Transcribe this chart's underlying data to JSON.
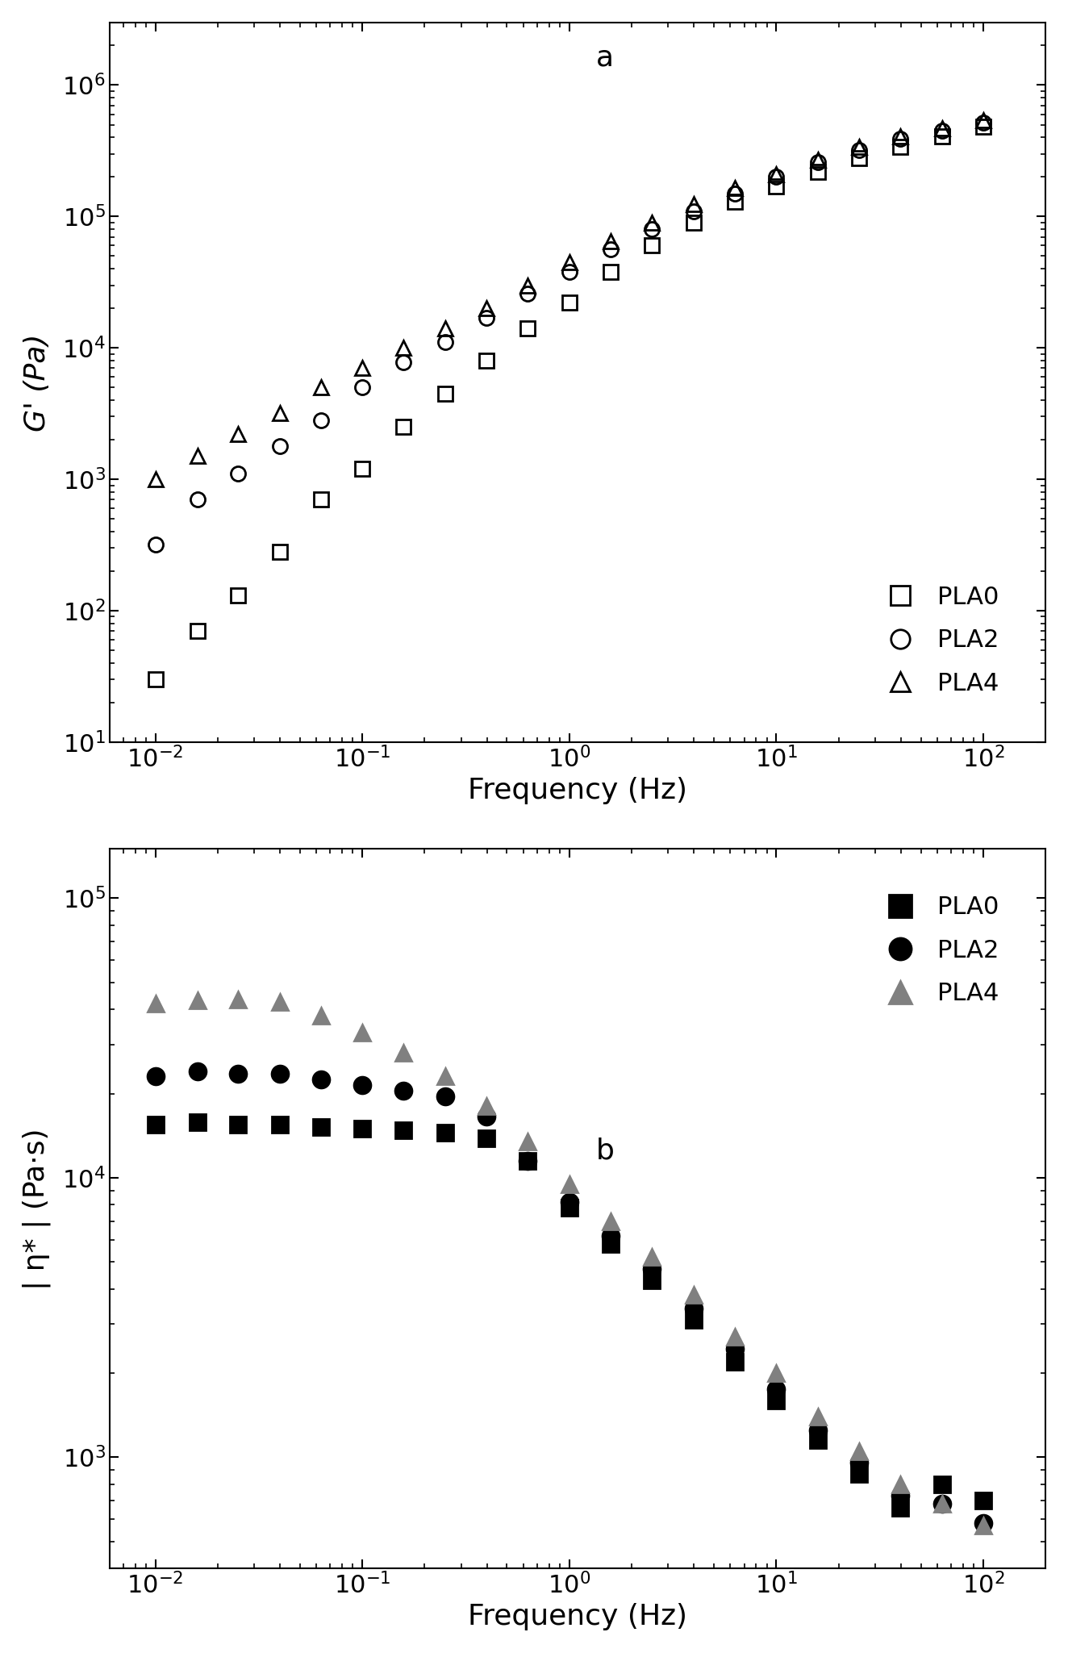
{
  "plot_a": {
    "label": "a",
    "ylabel": "G' (Pa)",
    "xlabel": "Frequency (Hz)",
    "xlim": [
      0.006,
      200
    ],
    "ylim": [
      10,
      3000000
    ],
    "PLA0": {
      "freq": [
        0.01,
        0.016,
        0.025,
        0.04,
        0.063,
        0.1,
        0.158,
        0.251,
        0.398,
        0.631,
        1.0,
        1.585,
        2.512,
        3.981,
        6.31,
        10.0,
        15.85,
        25.12,
        39.81,
        63.1,
        100.0
      ],
      "G": [
        30,
        70,
        130,
        280,
        700,
        1200,
        2500,
        4500,
        8000,
        14000,
        22000,
        38000,
        60000,
        90000,
        130000,
        170000,
        220000,
        280000,
        340000,
        410000,
        480000
      ]
    },
    "PLA2": {
      "freq": [
        0.01,
        0.016,
        0.025,
        0.04,
        0.063,
        0.1,
        0.158,
        0.251,
        0.398,
        0.631,
        1.0,
        1.585,
        2.512,
        3.981,
        6.31,
        10.0,
        15.85,
        25.12,
        39.81,
        63.1,
        100.0
      ],
      "G": [
        320,
        700,
        1100,
        1800,
        2800,
        5000,
        7800,
        11000,
        17000,
        26000,
        38000,
        56000,
        80000,
        110000,
        150000,
        200000,
        260000,
        320000,
        390000,
        450000,
        520000
      ]
    },
    "PLA4": {
      "freq": [
        0.01,
        0.016,
        0.025,
        0.04,
        0.063,
        0.1,
        0.158,
        0.251,
        0.398,
        0.631,
        1.0,
        1.585,
        2.512,
        3.981,
        6.31,
        10.0,
        15.85,
        25.12,
        39.81,
        63.1,
        100.0
      ],
      "G": [
        1000,
        1500,
        2200,
        3200,
        5000,
        7000,
        10000,
        14000,
        20000,
        30000,
        45000,
        65000,
        90000,
        125000,
        165000,
        210000,
        270000,
        340000,
        410000,
        470000,
        540000
      ]
    }
  },
  "plot_b": {
    "label": "b",
    "ylabel": "| η* | (Pa·s)",
    "xlabel": "Frequency (Hz)",
    "xlim": [
      0.006,
      200
    ],
    "ylim": [
      400,
      150000
    ],
    "PLA0": {
      "freq": [
        0.01,
        0.016,
        0.025,
        0.04,
        0.063,
        0.1,
        0.158,
        0.251,
        0.398,
        0.631,
        1.0,
        1.585,
        2.512,
        3.981,
        6.31,
        10.0,
        15.85,
        25.12,
        39.81,
        63.1,
        100.0
      ],
      "eta": [
        15500,
        15800,
        15500,
        15500,
        15200,
        15000,
        14800,
        14500,
        13800,
        11500,
        7800,
        5800,
        4300,
        3100,
        2200,
        1600,
        1150,
        870,
        660,
        800,
        700
      ]
    },
    "PLA2": {
      "freq": [
        0.01,
        0.016,
        0.025,
        0.04,
        0.063,
        0.1,
        0.158,
        0.251,
        0.398,
        0.631,
        1.0,
        1.585,
        2.512,
        3.981,
        6.31,
        10.0,
        15.85,
        25.12,
        39.81,
        63.1,
        100.0
      ],
      "eta": [
        23000,
        24000,
        23500,
        23500,
        22500,
        21500,
        20500,
        19500,
        16500,
        11500,
        8200,
        6200,
        4700,
        3400,
        2450,
        1750,
        1250,
        960,
        730,
        680,
        580
      ]
    },
    "PLA4": {
      "freq": [
        0.01,
        0.016,
        0.025,
        0.04,
        0.063,
        0.1,
        0.158,
        0.251,
        0.398,
        0.631,
        1.0,
        1.585,
        2.512,
        3.981,
        6.31,
        10.0,
        15.85,
        25.12,
        39.81,
        63.1,
        100.0
      ],
      "eta": [
        42000,
        43000,
        43500,
        42500,
        38000,
        33000,
        28000,
        23000,
        18000,
        13500,
        9500,
        7000,
        5200,
        3800,
        2700,
        2000,
        1400,
        1050,
        800,
        680,
        570
      ]
    }
  },
  "fig_width": 13.24,
  "fig_height": 20.49,
  "dpi": 100,
  "marker_size_open": 13,
  "marker_size_filled": 15,
  "marker_edge_width": 2.0,
  "background_color": "#ffffff",
  "label_fontsize": 26,
  "tick_fontsize": 22,
  "legend_fontsize": 22,
  "annotation_fontsize": 26,
  "spine_linewidth": 1.5
}
